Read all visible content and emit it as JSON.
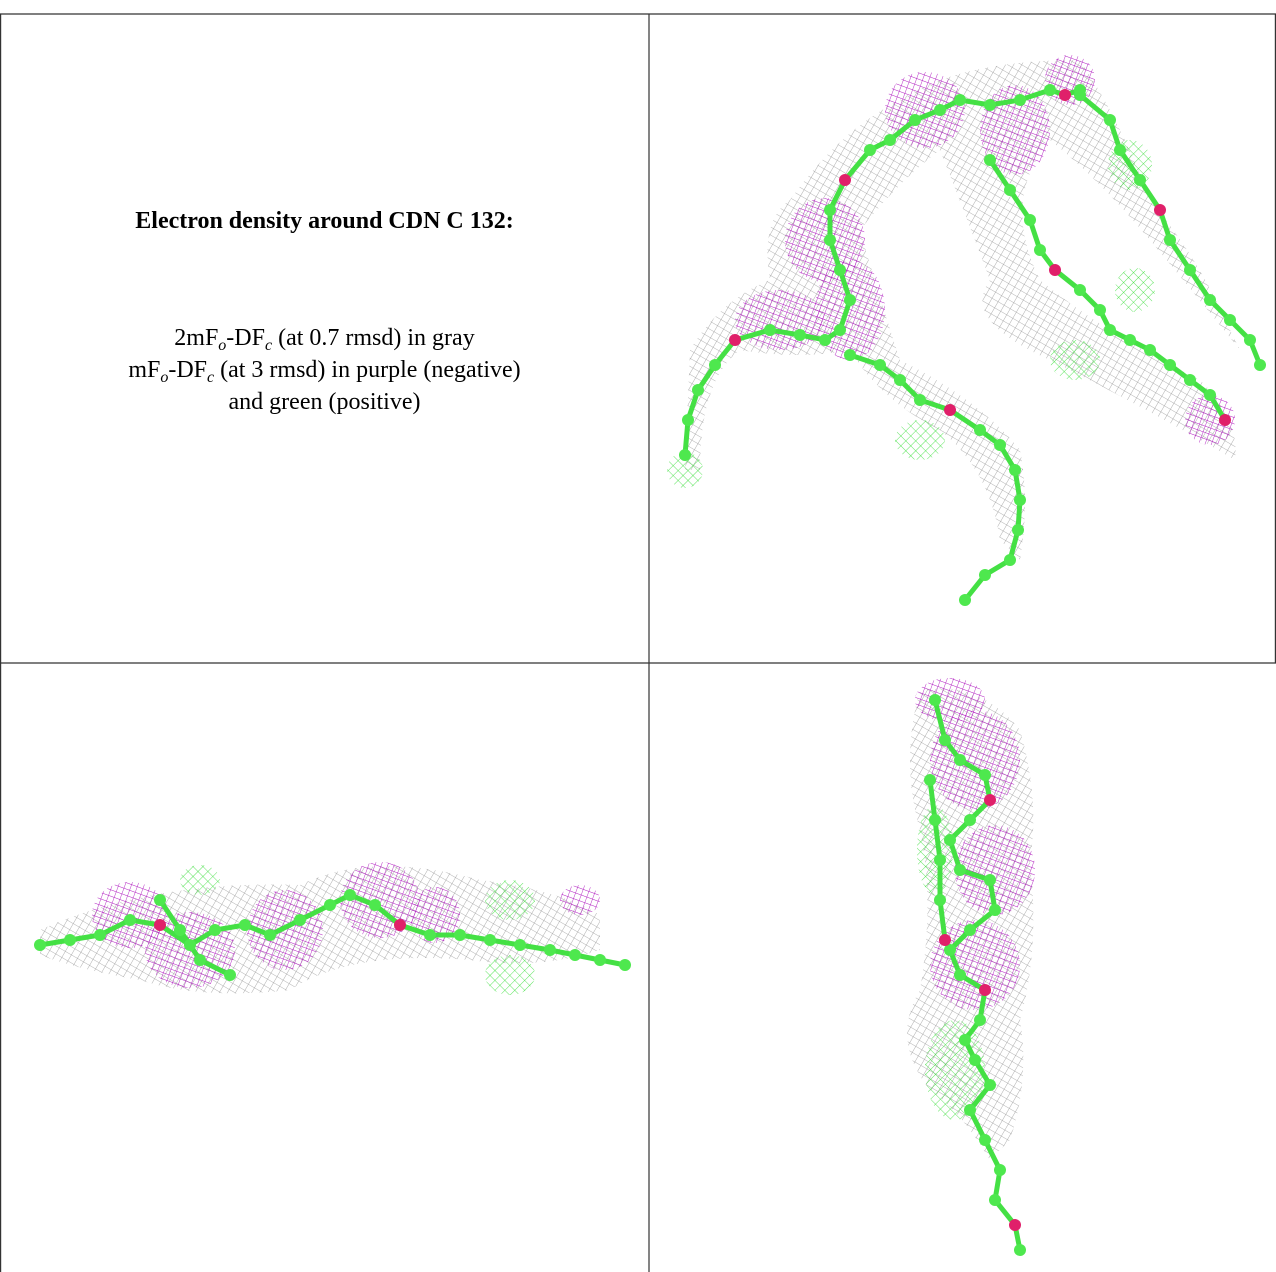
{
  "title": "Electron density around CDN C 132:",
  "legend": [
    [
      {
        "text": "2mF"
      },
      {
        "text": "o",
        "sub": true
      },
      {
        "text": "-DF"
      },
      {
        "text": "c",
        "sub": true
      },
      {
        "text": " (at 0.7 rmsd) in gray"
      }
    ],
    [
      {
        "text": "mF"
      },
      {
        "text": "o",
        "sub": true
      },
      {
        "text": "-DF"
      },
      {
        "text": "c",
        "sub": true
      },
      {
        "text": " (at 3 rmsd) in purple (negative)"
      }
    ],
    [
      {
        "text": "and green (positive)"
      }
    ]
  ]
}
